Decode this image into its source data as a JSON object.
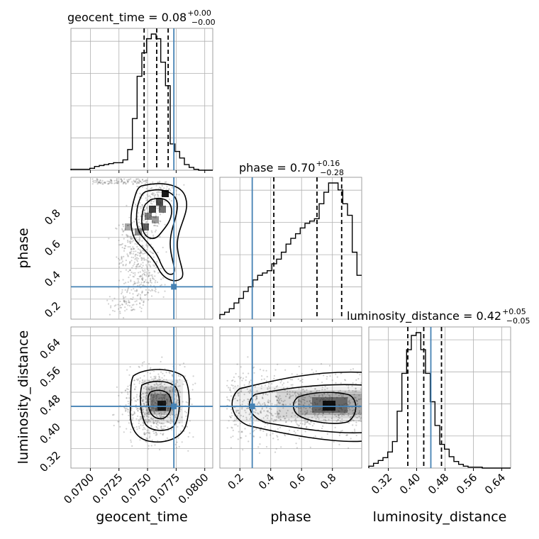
{
  "chart_data": {
    "type": "corner",
    "parameters": [
      "geocent_time",
      "phase",
      "luminosity_distance"
    ],
    "truth_color": "#4682b4",
    "grid": true,
    "truths": {
      "geocent_time": 0.0773,
      "phase": 0.28,
      "luminosity_distance": 0.44
    },
    "titles": [
      {
        "param": "geocent_time",
        "label": "geocent_time = 0.08",
        "plus": "+0.00",
        "minus": "−0.00"
      },
      {
        "param": "phase",
        "label": "phase = 0.70",
        "plus": "+0.16",
        "minus": "−0.28"
      },
      {
        "param": "luminosity_distance",
        "label": "luminosity_distance = 0.42",
        "plus": "+0.05",
        "minus": "−0.05"
      }
    ],
    "ranges": {
      "geocent_time": [
        0.0683,
        0.0807
      ],
      "phase": [
        0.07,
        0.99
      ],
      "luminosity_distance": [
        0.265,
        0.665
      ]
    },
    "ticks": {
      "geocent_time": [
        "0.0700",
        "0.0725",
        "0.0750",
        "0.0775",
        "0.0800"
      ],
      "phase": [
        "0.2",
        "0.4",
        "0.6",
        "0.8"
      ],
      "luminosity_distance": [
        "0.32",
        "0.40",
        "0.48",
        "0.56",
        "0.64"
      ]
    },
    "quantiles": {
      "geocent_time": [
        0.0747,
        0.0758,
        0.0768
      ],
      "phase": [
        0.42,
        0.7,
        0.86
      ],
      "luminosity_distance": [
        0.375,
        0.42,
        0.47
      ]
    },
    "histograms": {
      "geocent_time": {
        "min": 0.0683,
        "max": 0.0807,
        "counts": [
          1,
          1,
          1,
          1,
          2,
          4,
          5,
          6,
          7,
          8,
          8,
          11,
          22,
          55,
          100,
          125,
          140,
          145,
          140,
          115,
          90,
          28,
          20,
          13,
          6,
          3,
          1,
          0,
          0,
          0
        ]
      },
      "phase": {
        "min": 0.07,
        "max": 0.99,
        "counts": [
          4,
          6,
          9,
          14,
          18,
          24,
          28,
          34,
          38,
          40,
          42,
          48,
          52,
          58,
          65,
          70,
          74,
          79,
          83,
          85,
          87,
          100,
          110,
          118,
          118,
          112,
          100,
          90,
          58,
          38
        ]
      },
      "luminosity_distance": {
        "min": 0.265,
        "max": 0.665,
        "counts": [
          2,
          5,
          8,
          11,
          17,
          28,
          60,
          100,
          125,
          140,
          143,
          125,
          100,
          70,
          45,
          25,
          20,
          12,
          7,
          4,
          2,
          1,
          1,
          1,
          0,
          0,
          0,
          0,
          0,
          0
        ]
      }
    },
    "axis_labels": {
      "geocent_time": "geocent_time",
      "phase": "phase",
      "luminosity_distance": "luminosity_distance"
    }
  }
}
